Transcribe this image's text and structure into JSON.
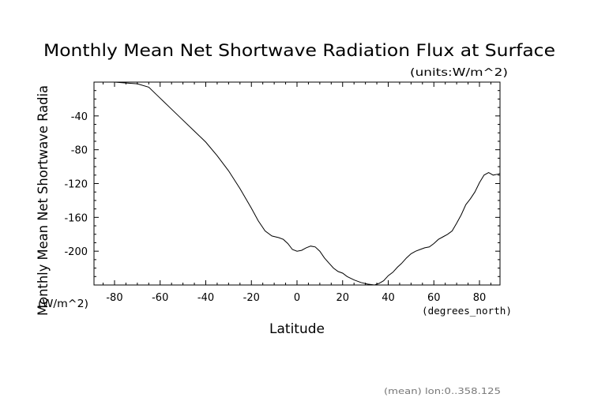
{
  "chart_data": {
    "type": "line",
    "title": "Monthly Mean Net Shortwave Radiation Flux at Surface",
    "units_note": "(units:W/m^2)",
    "xlabel": "Latitude",
    "x_units": "(degrees_north)",
    "ylabel": "Monthly Mean Net Shortwave Radia",
    "y_units": "(W/m^2)",
    "footnote": "(mean) lon:0..358.125",
    "xlim": [
      -89,
      89
    ],
    "ylim": [
      -240,
      0
    ],
    "xticks": [
      -80,
      -60,
      -40,
      -20,
      0,
      20,
      40,
      60,
      80
    ],
    "xtick_labels": [
      "-80",
      "-60",
      "-40",
      "-20",
      "0",
      "20",
      "40",
      "60",
      "80"
    ],
    "yticks": [
      -40,
      -80,
      -120,
      -160,
      -200
    ],
    "ytick_labels": [
      "-40",
      "-80",
      "-120",
      "-160",
      "-200"
    ],
    "grid": false,
    "series": [
      {
        "color": "#000000",
        "x": [
          -89,
          -85,
          -80,
          -75,
          -70,
          -65,
          -60,
          -55,
          -50,
          -45,
          -40,
          -35,
          -30,
          -25,
          -20,
          -17,
          -14,
          -11,
          -8,
          -6,
          -4,
          -2,
          0,
          2,
          4,
          6,
          8,
          10,
          12,
          14,
          16,
          18,
          20,
          22,
          25,
          28,
          31,
          34,
          36,
          38,
          40,
          42,
          44,
          46,
          48,
          50,
          52,
          54,
          56,
          58,
          60,
          62,
          64,
          66,
          68,
          70,
          72,
          74,
          76,
          78,
          80,
          82,
          84,
          86,
          88,
          89
        ],
        "y": [
          0,
          0,
          0,
          -1,
          -2,
          -6,
          -19,
          -32,
          -45,
          -58,
          -71,
          -87,
          -105,
          -126,
          -149,
          -164,
          -176,
          -182,
          -184,
          -186,
          -191,
          -198,
          -200,
          -199,
          -196,
          -194,
          -195,
          -200,
          -208,
          -214,
          -220,
          -224,
          -226,
          -230,
          -234,
          -237,
          -239,
          -240,
          -238,
          -235,
          -229,
          -225,
          -219,
          -214,
          -208,
          -203,
          -200,
          -198,
          -196,
          -195,
          -191,
          -186,
          -183,
          -180,
          -176,
          -167,
          -157,
          -145,
          -138,
          -130,
          -119,
          -110,
          -107,
          -110,
          -109,
          -108
        ]
      }
    ]
  }
}
